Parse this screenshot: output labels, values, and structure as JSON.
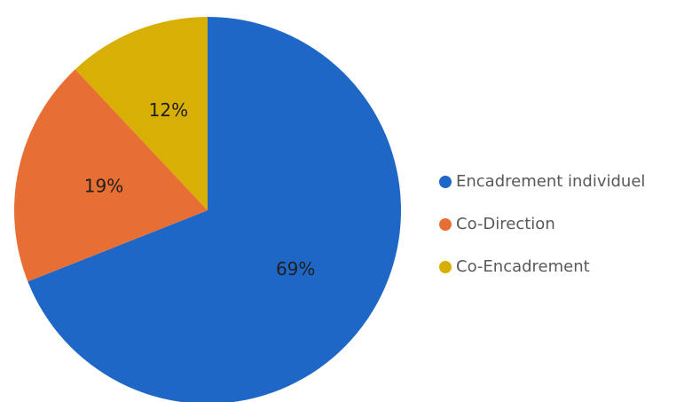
{
  "chart_data": {
    "type": "pie",
    "slices": [
      {
        "label": "Encadrement individuel",
        "value": 69,
        "display": "69%",
        "color": "#1f67c6"
      },
      {
        "label": "Co-Direction",
        "value": 19,
        "display": "19%",
        "color": "#e86f33"
      },
      {
        "label": "Co-Encadrement",
        "value": 12,
        "display": "12%",
        "color": "#d8b005"
      }
    ],
    "start": "top",
    "direction": "clockwise",
    "legend_position": "right"
  }
}
